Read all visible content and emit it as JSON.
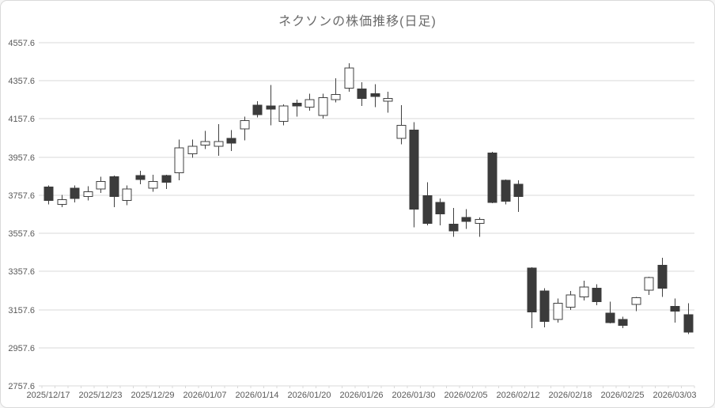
{
  "window": {
    "background": "#ffffff",
    "border_color": "#d9d9d9"
  },
  "chart_data": {
    "type": "candlestick",
    "title": "ネクソンの株価推移(日足)",
    "xlabel": "",
    "ylabel": "",
    "ylim": [
      2757.6,
      4557.6
    ],
    "y_tick_step": 200,
    "y_tick_labels": [
      "4557.6",
      "4357.6",
      "4157.6",
      "3957.6",
      "3757.6",
      "3557.6",
      "3357.6",
      "3157.6",
      "2957.6",
      "2757.6"
    ],
    "x_axis_labels": [
      "2025/12/17",
      "2025/12/23",
      "2025/12/29",
      "2026/01/07",
      "2026/01/14",
      "2026/01/20",
      "2026/01/26",
      "2026/01/30",
      "2026/02/05",
      "2026/02/12",
      "2026/02/18",
      "2026/02/25",
      "2026/03/03"
    ],
    "x_label_every_n_candles": 4,
    "grid": true,
    "legend": "none",
    "colors": {
      "up_fill": "#ffffff",
      "up_border": "#404040",
      "down_fill": "#3b3b3b",
      "wick": "#404040",
      "gridline": "#d9d9d9",
      "axis_line": "#d9d9d9",
      "axis_text": "#595959",
      "title_text": "#6a6a6a"
    },
    "series": [
      {
        "date": "2025/12/17",
        "open": 3800,
        "high": 3810,
        "low": 3710,
        "close": 3730
      },
      {
        "date": "2025/12/18",
        "open": 3710,
        "high": 3760,
        "low": 3695,
        "close": 3735
      },
      {
        "date": "2025/12/19",
        "open": 3795,
        "high": 3810,
        "low": 3720,
        "close": 3740
      },
      {
        "date": "2025/12/22",
        "open": 3750,
        "high": 3805,
        "low": 3730,
        "close": 3775
      },
      {
        "date": "2025/12/23",
        "open": 3790,
        "high": 3855,
        "low": 3770,
        "close": 3830
      },
      {
        "date": "2025/12/24",
        "open": 3855,
        "high": 3860,
        "low": 3695,
        "close": 3750
      },
      {
        "date": "2025/12/25",
        "open": 3730,
        "high": 3810,
        "low": 3705,
        "close": 3790
      },
      {
        "date": "2025/12/26",
        "open": 3860,
        "high": 3885,
        "low": 3815,
        "close": 3840
      },
      {
        "date": "2025/12/29",
        "open": 3795,
        "high": 3865,
        "low": 3775,
        "close": 3830
      },
      {
        "date": "2025/12/30",
        "open": 3860,
        "high": 3865,
        "low": 3790,
        "close": 3825
      },
      {
        "date": "2026/01/05",
        "open": 3875,
        "high": 4050,
        "low": 3835,
        "close": 4005
      },
      {
        "date": "2026/01/06",
        "open": 3975,
        "high": 4050,
        "low": 3955,
        "close": 4015
      },
      {
        "date": "2026/01/07",
        "open": 4020,
        "high": 4095,
        "low": 4000,
        "close": 4040
      },
      {
        "date": "2026/01/08",
        "open": 4015,
        "high": 4130,
        "low": 3965,
        "close": 4040
      },
      {
        "date": "2026/01/09",
        "open": 4055,
        "high": 4100,
        "low": 3990,
        "close": 4030
      },
      {
        "date": "2026/01/13",
        "open": 4105,
        "high": 4170,
        "low": 4045,
        "close": 4150
      },
      {
        "date": "2026/01/14",
        "open": 4230,
        "high": 4250,
        "low": 4165,
        "close": 4180
      },
      {
        "date": "2026/01/15",
        "open": 4225,
        "high": 4335,
        "low": 4125,
        "close": 4210
      },
      {
        "date": "2026/01/16",
        "open": 4145,
        "high": 4235,
        "low": 4125,
        "close": 4225
      },
      {
        "date": "2026/01/19",
        "open": 4240,
        "high": 4260,
        "low": 4170,
        "close": 4225
      },
      {
        "date": "2026/01/20",
        "open": 4220,
        "high": 4290,
        "low": 4200,
        "close": 4260
      },
      {
        "date": "2026/01/21",
        "open": 4175,
        "high": 4290,
        "low": 4160,
        "close": 4270
      },
      {
        "date": "2026/01/22",
        "open": 4260,
        "high": 4370,
        "low": 4245,
        "close": 4285
      },
      {
        "date": "2026/01/23",
        "open": 4320,
        "high": 4450,
        "low": 4300,
        "close": 4425
      },
      {
        "date": "2026/01/26",
        "open": 4315,
        "high": 4350,
        "low": 4225,
        "close": 4265
      },
      {
        "date": "2026/01/27",
        "open": 4290,
        "high": 4340,
        "low": 4220,
        "close": 4275
      },
      {
        "date": "2026/01/28",
        "open": 4250,
        "high": 4300,
        "low": 4190,
        "close": 4265
      },
      {
        "date": "2026/01/29",
        "open": 4055,
        "high": 4230,
        "low": 4025,
        "close": 4125
      },
      {
        "date": "2026/01/30",
        "open": 4100,
        "high": 4140,
        "low": 3590,
        "close": 3685
      },
      {
        "date": "2026/02/02",
        "open": 3755,
        "high": 3825,
        "low": 3600,
        "close": 3610
      },
      {
        "date": "2026/02/03",
        "open": 3720,
        "high": 3740,
        "low": 3600,
        "close": 3660
      },
      {
        "date": "2026/02/04",
        "open": 3605,
        "high": 3690,
        "low": 3540,
        "close": 3570
      },
      {
        "date": "2026/02/05",
        "open": 3640,
        "high": 3685,
        "low": 3580,
        "close": 3620
      },
      {
        "date": "2026/02/06",
        "open": 3610,
        "high": 3640,
        "low": 3540,
        "close": 3630
      },
      {
        "date": "2026/02/09",
        "open": 3980,
        "high": 3985,
        "low": 3715,
        "close": 3720
      },
      {
        "date": "2026/02/10",
        "open": 3835,
        "high": 3840,
        "low": 3710,
        "close": 3725
      },
      {
        "date": "2026/02/12",
        "open": 3815,
        "high": 3835,
        "low": 3670,
        "close": 3750
      },
      {
        "date": "2026/02/13",
        "open": 3375,
        "high": 3380,
        "low": 3060,
        "close": 3145
      },
      {
        "date": "2026/02/16",
        "open": 3255,
        "high": 3270,
        "low": 3065,
        "close": 3095
      },
      {
        "date": "2026/02/17",
        "open": 3105,
        "high": 3215,
        "low": 3090,
        "close": 3190
      },
      {
        "date": "2026/02/18",
        "open": 3170,
        "high": 3255,
        "low": 3155,
        "close": 3235
      },
      {
        "date": "2026/02/19",
        "open": 3225,
        "high": 3310,
        "low": 3205,
        "close": 3275
      },
      {
        "date": "2026/02/20",
        "open": 3270,
        "high": 3290,
        "low": 3180,
        "close": 3200
      },
      {
        "date": "2026/02/24",
        "open": 3140,
        "high": 3200,
        "low": 3085,
        "close": 3090
      },
      {
        "date": "2026/02/25",
        "open": 3105,
        "high": 3120,
        "low": 3060,
        "close": 3075
      },
      {
        "date": "2026/02/26",
        "open": 3185,
        "high": 3225,
        "low": 3150,
        "close": 3220
      },
      {
        "date": "2026/02/27",
        "open": 3260,
        "high": 3330,
        "low": 3235,
        "close": 3325
      },
      {
        "date": "2026/03/02",
        "open": 3390,
        "high": 3430,
        "low": 3225,
        "close": 3270
      },
      {
        "date": "2026/03/03",
        "open": 3175,
        "high": 3215,
        "low": 3090,
        "close": 3150
      },
      {
        "date": "2026/03/04",
        "open": 3130,
        "high": 3190,
        "low": 3030,
        "close": 3040
      }
    ]
  }
}
